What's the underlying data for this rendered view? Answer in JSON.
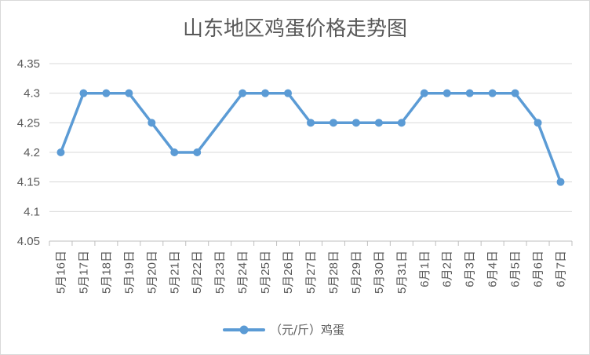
{
  "chart_data": {
    "type": "line",
    "title": "山东地区鸡蛋价格走势图",
    "xlabel": "",
    "ylabel": "",
    "categories": [
      "5月16日",
      "5月17日",
      "5月18日",
      "5月19日",
      "5月20日",
      "5月21日",
      "5月22日",
      "5月23日",
      "5月24日",
      "5月25日",
      "5月26日",
      "5月27日",
      "5月28日",
      "5月29日",
      "5月30日",
      "5月31日",
      "6月1日",
      "6月2日",
      "6月3日",
      "6月4日",
      "6月5日",
      "6月6日",
      "6月7日"
    ],
    "series": [
      {
        "name": "（元/斤）鸡蛋",
        "values": [
          4.2,
          4.3,
          4.3,
          4.3,
          4.25,
          4.2,
          4.2,
          null,
          4.3,
          4.3,
          4.3,
          4.25,
          4.25,
          4.25,
          4.25,
          4.25,
          4.3,
          4.3,
          4.3,
          4.3,
          4.3,
          4.25,
          4.15
        ]
      }
    ],
    "ylim": [
      4.05,
      4.35
    ],
    "yticks": [
      "4.05",
      "4.1",
      "4.15",
      "4.2",
      "4.25",
      "4.3",
      "4.35"
    ],
    "grid": true,
    "legend_position": "bottom",
    "colors": {
      "series": "#5b9bd5",
      "grid": "#d9d9d9",
      "text": "#595959"
    }
  }
}
